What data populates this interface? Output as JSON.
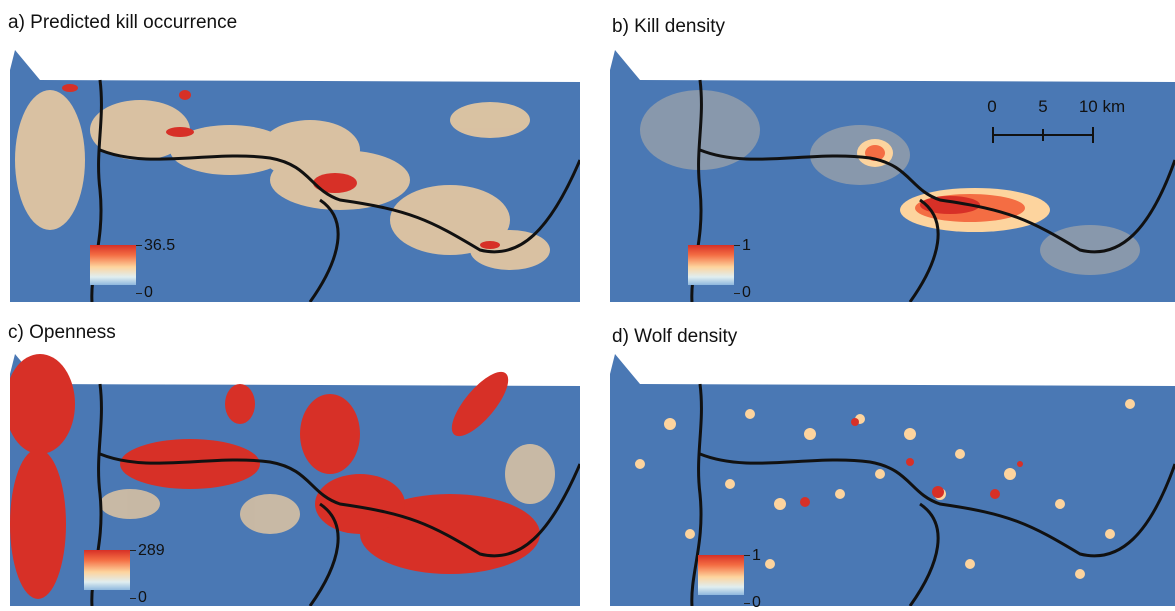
{
  "panels": [
    {
      "id": "a",
      "title": "a) Predicted kill occurrence",
      "legend_max": "36.5",
      "legend_min": "0"
    },
    {
      "id": "b",
      "title": "b) Kill density",
      "legend_max": "1",
      "legend_min": "0"
    },
    {
      "id": "c",
      "title": "c) Openness",
      "legend_max": "289",
      "legend_min": "0"
    },
    {
      "id": "d",
      "title": "d) Wolf density",
      "legend_max": "1",
      "legend_min": "0"
    }
  ],
  "scale_bar": {
    "labels": [
      "0",
      "5",
      "10 km"
    ]
  },
  "colors": {
    "background": "#4a78b4",
    "high": "#d73027",
    "mid": "#fdd49e",
    "low": "#e8eef0",
    "road": "#111111"
  }
}
